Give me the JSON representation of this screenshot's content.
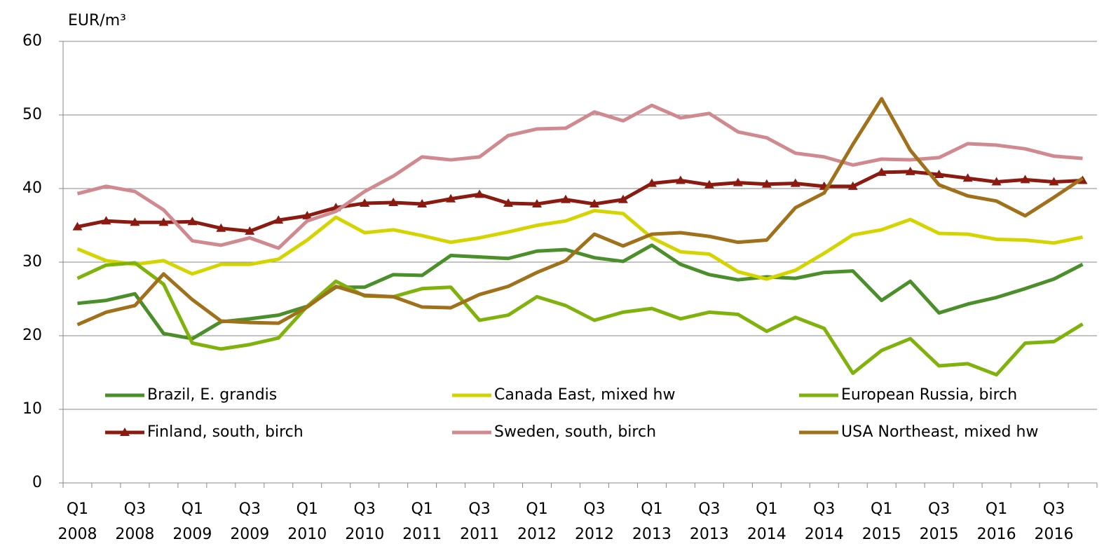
{
  "chart_data": {
    "type": "line",
    "ylabel": "EUR/m³",
    "categories": [
      "Q1 2008",
      null,
      "Q3 2008",
      null,
      "Q1 2009",
      null,
      "Q3 2009",
      null,
      "Q1 2010",
      null,
      "Q3 2010",
      null,
      "Q1 2011",
      null,
      "Q3 2011",
      null,
      "Q1 2012",
      null,
      "Q3 2012",
      null,
      "Q1 2013",
      null,
      "Q3 2013",
      null,
      "Q1 2014",
      null,
      "Q3 2014",
      null,
      "Q1 2015",
      null,
      "Q3 2015",
      null,
      "Q1 2016",
      null,
      "Q3 2016",
      null
    ],
    "series": [
      {
        "name": "Brazil, E. grandis",
        "color": "#4a8f2a",
        "values": [
          24.4,
          24.8,
          25.7,
          20.3,
          19.6,
          21.9,
          22.3,
          22.8,
          24.0,
          26.6,
          26.6,
          28.3,
          28.2,
          30.9,
          30.7,
          30.5,
          31.5,
          31.7,
          30.6,
          30.1,
          32.3,
          29.7,
          28.3,
          27.6,
          28.0,
          27.8,
          28.6,
          28.8,
          24.8,
          27.4,
          23.1,
          24.3,
          25.2,
          26.4,
          27.7,
          29.7
        ]
      },
      {
        "name": "Canada East, mixed hw",
        "color": "#d4d400",
        "values": [
          31.8,
          30.2,
          29.7,
          30.2,
          28.4,
          29.7,
          29.7,
          30.4,
          33.0,
          36.1,
          34.0,
          34.4,
          33.6,
          32.7,
          33.3,
          34.1,
          35.0,
          35.6,
          37.0,
          36.6,
          33.3,
          31.4,
          31.1,
          28.7,
          27.7,
          28.9,
          31.2,
          33.7,
          34.4,
          35.8,
          33.9,
          33.8,
          33.1,
          33.0,
          32.6,
          33.4
        ]
      },
      {
        "name": "European Russia, birch",
        "color": "#7fb20a",
        "values": [
          27.8,
          29.6,
          29.9,
          27.0,
          19.0,
          18.2,
          18.8,
          19.7,
          24.0,
          27.4,
          25.4,
          25.3,
          26.4,
          26.6,
          22.1,
          22.8,
          25.3,
          24.1,
          22.1,
          23.2,
          23.7,
          22.3,
          23.2,
          22.9,
          20.6,
          22.5,
          21.0,
          14.9,
          18.0,
          19.6,
          15.9,
          16.2,
          14.7,
          19.0,
          19.2,
          21.6
        ]
      },
      {
        "name": "Finland, south, birch",
        "color": "#8b1a10",
        "marker": "triangle",
        "values": [
          34.8,
          35.6,
          35.4,
          35.4,
          35.5,
          34.6,
          34.2,
          35.7,
          36.3,
          37.4,
          38.0,
          38.1,
          37.9,
          38.6,
          39.2,
          38.0,
          37.9,
          38.5,
          37.9,
          38.5,
          40.7,
          41.1,
          40.5,
          40.8,
          40.6,
          40.7,
          40.3,
          40.3,
          42.2,
          42.3,
          41.9,
          41.4,
          40.9,
          41.2,
          40.9,
          41.1
        ]
      },
      {
        "name": "Sweden, south, birch",
        "color": "#d08a8f",
        "values": [
          39.3,
          40.3,
          39.6,
          37.1,
          32.9,
          32.3,
          33.3,
          31.9,
          35.6,
          36.9,
          39.6,
          41.7,
          44.3,
          43.9,
          44.3,
          47.2,
          48.1,
          48.2,
          50.4,
          49.2,
          51.3,
          49.6,
          50.2,
          47.7,
          46.9,
          44.8,
          44.3,
          43.2,
          44.0,
          43.9,
          44.2,
          46.1,
          45.9,
          45.4,
          44.4,
          44.1
        ]
      },
      {
        "name": "USA Northeast, mixed hw",
        "color": "#a0701a",
        "values": [
          21.5,
          23.2,
          24.1,
          28.4,
          24.9,
          22.0,
          21.8,
          21.7,
          23.9,
          26.7,
          25.5,
          25.3,
          23.9,
          23.8,
          25.6,
          26.7,
          28.6,
          30.2,
          33.8,
          32.2,
          33.8,
          34.0,
          33.5,
          32.7,
          33.0,
          37.4,
          39.4,
          46.0,
          52.2,
          45.2,
          40.5,
          39.0,
          38.3,
          36.3,
          38.8,
          41.4
        ]
      }
    ],
    "ylim": [
      0,
      60
    ],
    "yticks": [
      0,
      10,
      20,
      30,
      40,
      50,
      60
    ],
    "grid": true,
    "legend": "lower center"
  }
}
